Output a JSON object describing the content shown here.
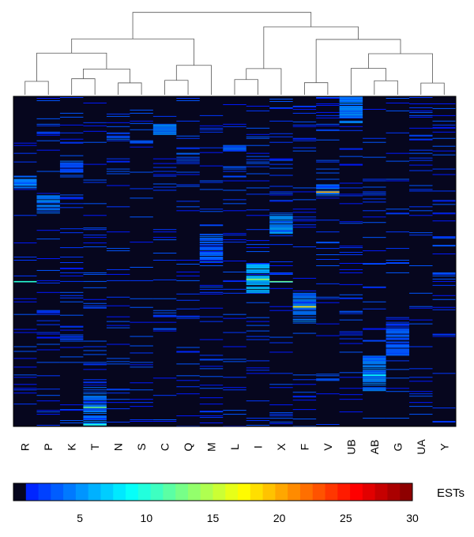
{
  "chart_data": {
    "type": "heatmap",
    "title": "",
    "columns": [
      "R",
      "P",
      "K",
      "T",
      "N",
      "S",
      "C",
      "Q",
      "M",
      "L",
      "I",
      "X",
      "F",
      "V",
      "UB",
      "AB",
      "G",
      "UA",
      "Y"
    ],
    "dendrogram_order": [
      "R",
      "P",
      "K",
      "T",
      "N",
      "S",
      "C",
      "Q",
      "M",
      "L",
      "I",
      "X",
      "F",
      "V",
      "UB",
      "AB",
      "G",
      "UA",
      "Y"
    ],
    "colorbar": {
      "label": "ESTs",
      "min": 0,
      "max": 30,
      "ticks": [
        5,
        10,
        15,
        20,
        25,
        30
      ],
      "colormap": "jet",
      "background_color": "#06061e"
    },
    "n_rows_approx": 420,
    "highlighted_blocks": [
      {
        "column": "UB",
        "row_start": 0,
        "row_end": 35,
        "value": 4
      },
      {
        "column": "C",
        "row_start": 35,
        "row_end": 50,
        "value": 4
      },
      {
        "column": "N",
        "row_start": 45,
        "row_end": 55,
        "value": 3
      },
      {
        "column": "S",
        "row_start": 55,
        "row_end": 60,
        "value": 3
      },
      {
        "column": "L",
        "row_start": 62,
        "row_end": 72,
        "value": 3
      },
      {
        "column": "Q",
        "row_start": 72,
        "row_end": 82,
        "value": 3
      },
      {
        "column": "K",
        "row_start": 82,
        "row_end": 98,
        "value": 3
      },
      {
        "column": "R",
        "row_start": 98,
        "row_end": 118,
        "value": 4
      },
      {
        "column": "P",
        "row_start": 126,
        "row_end": 150,
        "value": 4
      },
      {
        "column": "V",
        "row_start": 112,
        "row_end": 128,
        "value": 4
      },
      {
        "column": "X",
        "row_start": 150,
        "row_end": 175,
        "value": 5
      },
      {
        "column": "M",
        "row_start": 175,
        "row_end": 212,
        "value": 3
      },
      {
        "column": "I",
        "row_start": 212,
        "row_end": 250,
        "value": 6
      },
      {
        "column": "F",
        "row_start": 250,
        "row_end": 290,
        "value": 4
      },
      {
        "column": "G",
        "row_start": 285,
        "row_end": 330,
        "value": 3
      },
      {
        "column": "AB",
        "row_start": 330,
        "row_end": 375,
        "value": 4
      },
      {
        "column": "T",
        "row_start": 370,
        "row_end": 420,
        "value": 4
      }
    ],
    "hot_cells": [
      {
        "column": "V",
        "row": 121,
        "value": 20
      },
      {
        "column": "F",
        "row": 267,
        "value": 18
      },
      {
        "column": "I",
        "row": 232,
        "value": 14
      },
      {
        "column": "X",
        "row": 235,
        "value": 12
      },
      {
        "column": "R",
        "row": 235,
        "value": 10
      },
      {
        "column": "T",
        "row": 395,
        "value": 12
      },
      {
        "column": "AB",
        "row": 354,
        "value": 9
      },
      {
        "column": "T",
        "row": 417,
        "value": 10
      }
    ]
  }
}
